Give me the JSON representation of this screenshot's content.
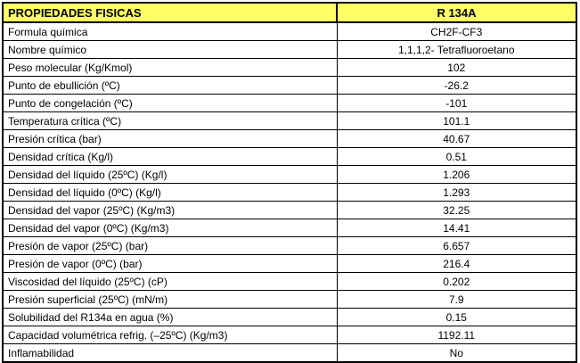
{
  "colors": {
    "header_bg": "#FFFF66",
    "border": "#000000",
    "background": "#FFFFFF"
  },
  "table": {
    "header": {
      "property": "PROPIEDADES FISICAS",
      "value": "R 134A"
    },
    "rows": [
      {
        "property": "Formula química",
        "value": "CH2F-CF3"
      },
      {
        "property": "Nombre químico",
        "value": "1,1,1,2- Tetrafluoroetano"
      },
      {
        "property": "Peso molecular (Kg/Kmol)",
        "value": "102"
      },
      {
        "property": "Punto de ebullición (ºC)",
        "value": "-26.2"
      },
      {
        "property": "Punto de congelación (ºC)",
        "value": "-101"
      },
      {
        "property": "Temperatura crítica (ºC)",
        "value": "101.1"
      },
      {
        "property": "Presión crítica (bar)",
        "value": "40.67"
      },
      {
        "property": "Densidad crítica (Kg/l)",
        "value": "0.51"
      },
      {
        "property": "Densidad del líquido (25ºC) (Kg/l)",
        "value": "1.206"
      },
      {
        "property": "Densidad del líquido (0ºC) (Kg/l)",
        "value": "1.293"
      },
      {
        "property": "Densidad del vapor (25ºC) (Kg/m3)",
        "value": "32.25"
      },
      {
        "property": "Densidad del vapor (0ºC) (Kg/m3)",
        "value": "14.41"
      },
      {
        "property": "Presión de vapor (25ºC) (bar)",
        "value": "6.657"
      },
      {
        "property": "Presión de vapor (0ºC) (bar)",
        "value": "216.4"
      },
      {
        "property": "Viscosidad del líquido (25ºC) (cP)",
        "value": "0.202"
      },
      {
        "property": "Presión superficial (25ºC) (mN/m)",
        "value": "7.9"
      },
      {
        "property": "Solubilidad del R134a en agua (%)",
        "value": "0.15"
      },
      {
        "property": "Capacidad volumétrica refrig. (–25ºC) (Kg/m3)",
        "value": "1192.11"
      },
      {
        "property": "Inflamabilidad",
        "value": "No"
      }
    ]
  }
}
